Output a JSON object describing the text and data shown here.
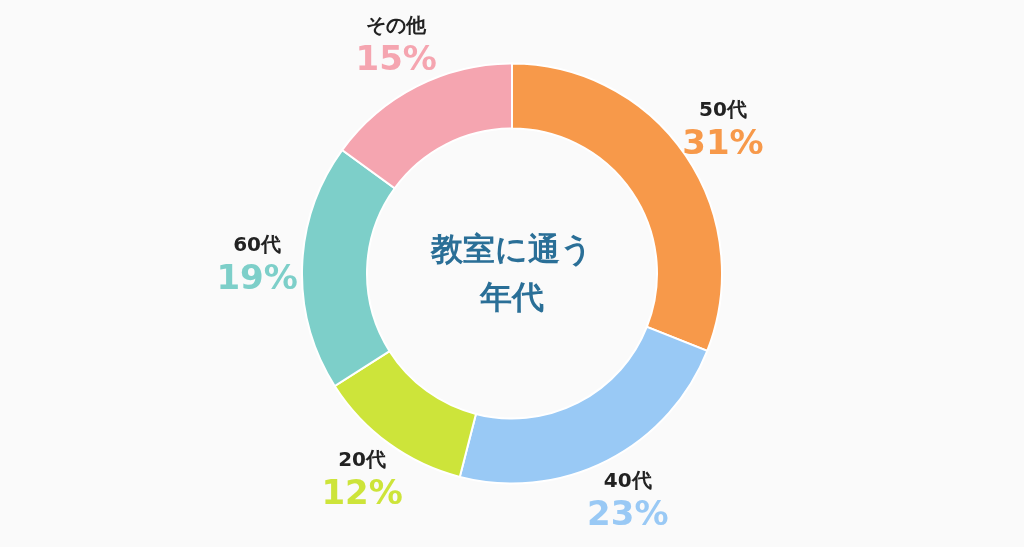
{
  "chart_data": {
    "type": "donut",
    "title": "教室に通う",
    "subtitle": "年代",
    "categories": [
      "50代",
      "40代",
      "20代",
      "60代",
      "その他"
    ],
    "values": [
      31,
      23,
      12,
      19,
      15
    ],
    "value_labels": [
      "31%",
      "23%",
      "12%",
      "19%",
      "15%"
    ],
    "colors": [
      "#f7994a",
      "#99c9f5",
      "#cde43a",
      "#7dcfc9",
      "#f5a5b0"
    ]
  }
}
